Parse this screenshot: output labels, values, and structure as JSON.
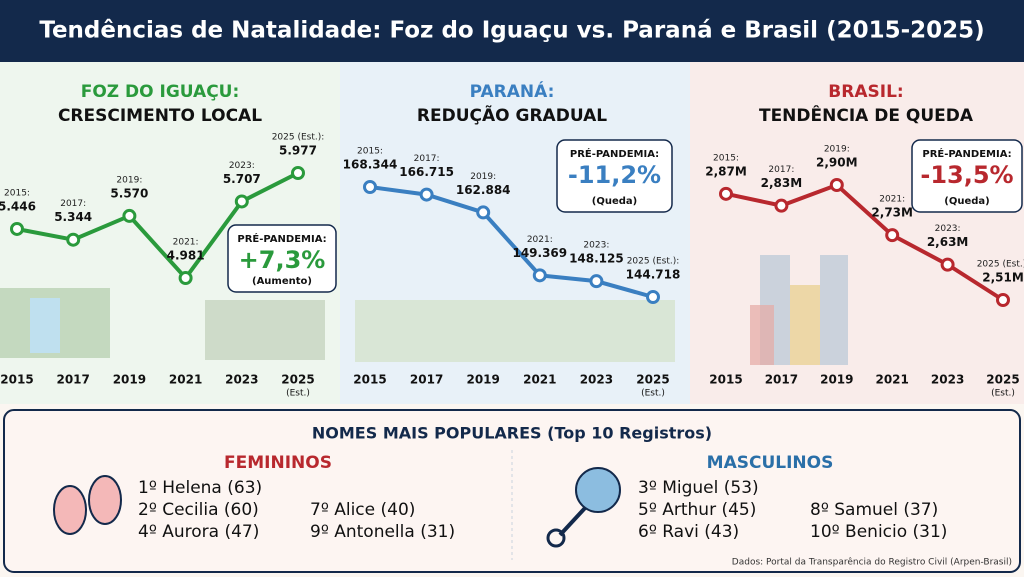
{
  "title": "Tendências de Natalidade: Foz do Iguaçu vs. Paraná e Brasil (2015-2025)",
  "chart_data": [
    {
      "type": "line",
      "title": "FOZ DO IGUAÇU:",
      "subtitle": "CRESCIMENTO LOCAL",
      "color": "#2a9a3c",
      "categories": [
        "2015",
        "2017",
        "2019",
        "2021",
        "2023",
        "2025"
      ],
      "estimate_label": "(Est.)",
      "point_labels": [
        "2015:",
        "2017:",
        "2019:",
        "2021:",
        "2023:",
        "2025 (Est.):"
      ],
      "values": [
        5446,
        5344,
        5570,
        4981,
        5707,
        5977
      ],
      "value_labels": [
        "5.446",
        "5.344",
        "5.570",
        "4.981",
        "5.707",
        "5.977"
      ],
      "callout": {
        "label": "PRÉ-PANDEMIA:",
        "value": "+7,3%",
        "note": "(Aumento)"
      }
    },
    {
      "type": "line",
      "title": "PARANÁ:",
      "subtitle": "REDUÇÃO GRADUAL",
      "color": "#3a7fc1",
      "categories": [
        "2015",
        "2017",
        "2019",
        "2021",
        "2023",
        "2025"
      ],
      "estimate_label": "(Est.)",
      "point_labels": [
        "2015:",
        "2017:",
        "2019:",
        "2021:",
        "2023:",
        "2025 (Est.):"
      ],
      "values": [
        168344,
        166715,
        162884,
        149369,
        148125,
        144718
      ],
      "value_labels": [
        "168.344",
        "166.715",
        "162.884",
        "149.369",
        "148.125",
        "144.718"
      ],
      "callout": {
        "label": "PRÉ-PANDEMIA:",
        "value": "-11,2%",
        "note": "(Queda)"
      }
    },
    {
      "type": "line",
      "title": "BRASIL:",
      "subtitle": "TENDÊNCIA DE QUEDA",
      "color": "#b8282e",
      "categories": [
        "2015",
        "2017",
        "2019",
        "2021",
        "2023",
        "2025"
      ],
      "estimate_label": "(Est.)",
      "point_labels": [
        "2015:",
        "2017:",
        "2019:",
        "2021:",
        "2023:",
        "2025 (Est.):"
      ],
      "values": [
        2.87,
        2.83,
        2.9,
        2.73,
        2.63,
        2.51
      ],
      "value_labels": [
        "2,87M",
        "2,83M",
        "2,90M",
        "2,73M",
        "2,63M",
        "2,51M"
      ],
      "callout": {
        "label": "PRÉ-PANDEMIA:",
        "value": "-13,5%",
        "note": "(Queda)"
      }
    }
  ],
  "names": {
    "title": "NOMES MAIS POPULARES (Top 10 Registros)",
    "female": {
      "title": "FEMININOS",
      "items": [
        "1º Helena (63)",
        "2º Cecilia (60)",
        "4º Aurora (47)",
        "7º Alice (40)",
        "9º Antonella (31)"
      ]
    },
    "male": {
      "title": "MASCULINOS",
      "items": [
        "3º Miguel (53)",
        "5º Arthur (45)",
        "6º Ravi (43)",
        "8º Samuel (37)",
        "10º Benicio (31)"
      ]
    }
  },
  "source": "Dados: Portal da Transparência do Registro Civil (Arpen-Brasil)"
}
